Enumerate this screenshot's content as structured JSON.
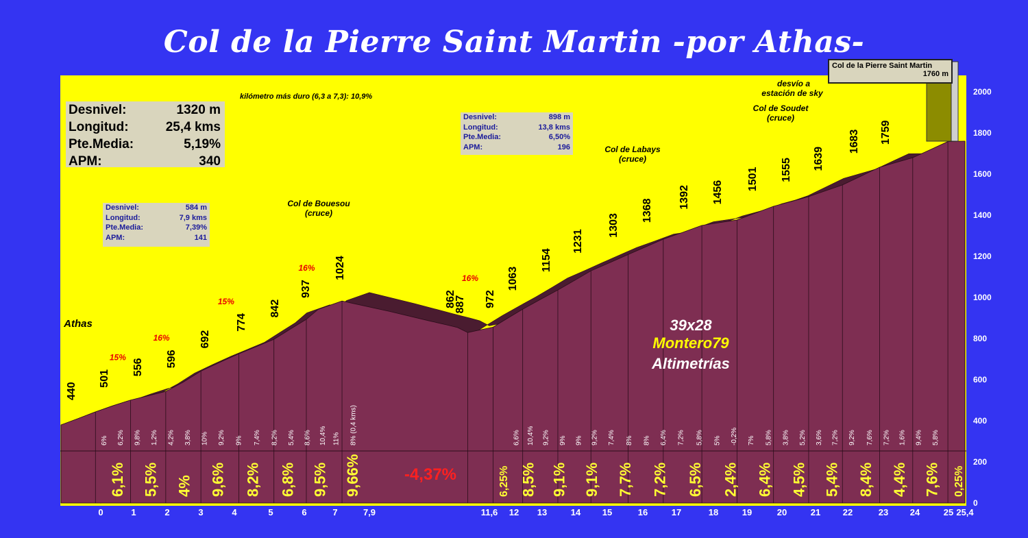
{
  "title": "Col de la Pierre Saint Martin -por Athas-",
  "summary": {
    "rows": [
      {
        "label": "Desnivel:",
        "value": "1320 m"
      },
      {
        "label": "Longitud:",
        "value": "25,4 kms"
      },
      {
        "label": "Pte.Media:",
        "value": "5,19%"
      },
      {
        "label": "APM:",
        "value": "340"
      }
    ]
  },
  "sector1": {
    "rows": [
      {
        "label": "Desnivel:",
        "value": "584 m"
      },
      {
        "label": "Longitud:",
        "value": "7,9 kms"
      },
      {
        "label": "Pte.Media:",
        "value": "7,39%"
      },
      {
        "label": "APM:",
        "value": "141"
      }
    ]
  },
  "sector2": {
    "rows": [
      {
        "label": "Desnivel:",
        "value": "898 m"
      },
      {
        "label": "Longitud:",
        "value": "13,8 kms"
      },
      {
        "label": "Pte.Media:",
        "value": "6,50%"
      },
      {
        "label": "APM:",
        "value": "196"
      }
    ]
  },
  "summit_box": {
    "name": "Col de la Pierre Saint Martin",
    "altitude": "1760 m"
  },
  "hardest_km": "kilómetro más duro (6,3 a 7,3):  10,9%",
  "watermark": {
    "line1": "39x28",
    "line2": "Montero79",
    "line3": "Altimetrías"
  },
  "colors": {
    "background": "#3434f2",
    "plot_bg": "#ffff00",
    "profile": "#7e2e52",
    "profile_top": "#4a1c30",
    "km_pct": "#ffff33",
    "max_pct": "#e80000",
    "descent_pct": "#ff2020"
  },
  "chart_data": {
    "type": "area",
    "xlabel": "",
    "ylabel": "",
    "xlim": [
      0,
      25.4
    ],
    "ylim": [
      0,
      2000
    ],
    "x_ticks": [
      "0",
      "1",
      "2",
      "3",
      "4",
      "5",
      "6",
      "7",
      "7,9",
      "11,6",
      "12",
      "13",
      "14",
      "15",
      "16",
      "17",
      "18",
      "19",
      "20",
      "21",
      "22",
      "23",
      "24",
      "25",
      "25,4"
    ],
    "y_ticks": [
      0,
      200,
      400,
      600,
      800,
      1000,
      1200,
      1400,
      1600,
      1800,
      2000
    ],
    "profile": [
      {
        "km": 0,
        "alt": 440
      },
      {
        "km": 0.5,
        "alt": 470
      },
      {
        "km": 1,
        "alt": 501
      },
      {
        "km": 1.5,
        "alt": 530
      },
      {
        "km": 2,
        "alt": 556
      },
      {
        "km": 2.5,
        "alt": 576
      },
      {
        "km": 3,
        "alt": 596
      },
      {
        "km": 3.5,
        "alt": 640
      },
      {
        "km": 4,
        "alt": 692
      },
      {
        "km": 4.5,
        "alt": 734
      },
      {
        "km": 5,
        "alt": 774
      },
      {
        "km": 5.5,
        "alt": 808
      },
      {
        "km": 6,
        "alt": 842
      },
      {
        "km": 6.5,
        "alt": 890
      },
      {
        "km": 7,
        "alt": 937
      },
      {
        "km": 7.3,
        "alt": 985
      },
      {
        "km": 7.9,
        "alt": 1024
      },
      {
        "km": 9.3,
        "alt": 970
      },
      {
        "km": 10.5,
        "alt": 920
      },
      {
        "km": 11,
        "alt": 900
      },
      {
        "km": 11.3,
        "alt": 887
      },
      {
        "km": 11.6,
        "alt": 862
      },
      {
        "km": 12,
        "alt": 887
      },
      {
        "km": 12.5,
        "alt": 930
      },
      {
        "km": 13,
        "alt": 972
      },
      {
        "km": 13.5,
        "alt": 1018
      },
      {
        "km": 14,
        "alt": 1063
      },
      {
        "km": 14.5,
        "alt": 1108
      },
      {
        "km": 15,
        "alt": 1154
      },
      {
        "km": 15.5,
        "alt": 1192
      },
      {
        "km": 16,
        "alt": 1231
      },
      {
        "km": 16.5,
        "alt": 1267
      },
      {
        "km": 17,
        "alt": 1303
      },
      {
        "km": 17.5,
        "alt": 1335
      },
      {
        "km": 18,
        "alt": 1368
      },
      {
        "km": 18.5,
        "alt": 1380
      },
      {
        "km": 19,
        "alt": 1392
      },
      {
        "km": 19.5,
        "alt": 1424
      },
      {
        "km": 20,
        "alt": 1456
      },
      {
        "km": 20.5,
        "alt": 1478
      },
      {
        "km": 21,
        "alt": 1501
      },
      {
        "km": 21.5,
        "alt": 1528
      },
      {
        "km": 22,
        "alt": 1555
      },
      {
        "km": 22.5,
        "alt": 1597
      },
      {
        "km": 23,
        "alt": 1639
      },
      {
        "km": 23.5,
        "alt": 1661
      },
      {
        "km": 24,
        "alt": 1683
      },
      {
        "km": 24.5,
        "alt": 1721
      },
      {
        "km": 25,
        "alt": 1759
      },
      {
        "km": 25.4,
        "alt": 1760
      }
    ],
    "km_altitude_labels": [
      {
        "km": 0,
        "label": "440"
      },
      {
        "km": 1,
        "label": "501"
      },
      {
        "km": 2,
        "label": "556"
      },
      {
        "km": 3,
        "label": "596"
      },
      {
        "km": 4,
        "label": "692"
      },
      {
        "km": 5,
        "label": "774"
      },
      {
        "km": 6,
        "label": "842"
      },
      {
        "km": 7,
        "label": "937"
      },
      {
        "km": 7.9,
        "label": "1024"
      },
      {
        "km": 11.3,
        "label": "862"
      },
      {
        "km": 11.6,
        "label": "887"
      },
      {
        "km": 12.2,
        "label": "972"
      },
      {
        "km": 13,
        "label": "1063"
      },
      {
        "km": 14,
        "label": "1154"
      },
      {
        "km": 15,
        "label": "1231"
      },
      {
        "km": 16,
        "label": "1303"
      },
      {
        "km": 17,
        "label": "1368"
      },
      {
        "km": 18,
        "label": "1392"
      },
      {
        "km": 19,
        "label": "1456"
      },
      {
        "km": 20,
        "label": "1501"
      },
      {
        "km": 21,
        "label": "1555"
      },
      {
        "km": 22,
        "label": "1639"
      },
      {
        "km": 23,
        "label": "1683"
      },
      {
        "km": 24,
        "label": "1759"
      }
    ],
    "half_km_grades": [
      {
        "km": 0.25,
        "label": "6%"
      },
      {
        "km": 0.75,
        "label": "6,2%"
      },
      {
        "km": 1.25,
        "label": "9,8%"
      },
      {
        "km": 1.75,
        "label": "1,2%"
      },
      {
        "km": 2.25,
        "label": "4,2%"
      },
      {
        "km": 2.75,
        "label": "3,8%"
      },
      {
        "km": 3.25,
        "label": "10%"
      },
      {
        "km": 3.75,
        "label": "9,2%"
      },
      {
        "km": 4.25,
        "label": "9%"
      },
      {
        "km": 4.75,
        "label": "7,4%"
      },
      {
        "km": 5.25,
        "label": "8,2%"
      },
      {
        "km": 5.75,
        "label": "5,4%"
      },
      {
        "km": 6.25,
        "label": "8,6%"
      },
      {
        "km": 6.75,
        "label": "10,4%"
      },
      {
        "km": 7.15,
        "label": "11%"
      },
      {
        "km": 7.6,
        "label": "8% (0,4 kms)"
      },
      {
        "km": 12.25,
        "label": "6,6%"
      },
      {
        "km": 12.75,
        "label": "10,4%"
      },
      {
        "km": 13.25,
        "label": "9,2%"
      },
      {
        "km": 13.75,
        "label": "9%"
      },
      {
        "km": 14.25,
        "label": "9%"
      },
      {
        "km": 14.75,
        "label": "9,2%"
      },
      {
        "km": 15.25,
        "label": "7,4%"
      },
      {
        "km": 15.75,
        "label": "8%"
      },
      {
        "km": 16.25,
        "label": "8%"
      },
      {
        "km": 16.75,
        "label": "6,4%"
      },
      {
        "km": 17.25,
        "label": "7,2%"
      },
      {
        "km": 17.75,
        "label": "5,8%"
      },
      {
        "km": 18.25,
        "label": "5%"
      },
      {
        "km": 18.75,
        "label": "-0,2%"
      },
      {
        "km": 19.25,
        "label": "7%"
      },
      {
        "km": 19.75,
        "label": "5,8%"
      },
      {
        "km": 20.25,
        "label": "3,8%"
      },
      {
        "km": 20.75,
        "label": "5,2%"
      },
      {
        "km": 21.25,
        "label": "3,6%"
      },
      {
        "km": 21.75,
        "label": "7,2%"
      },
      {
        "km": 22.25,
        "label": "9,2%"
      },
      {
        "km": 22.75,
        "label": "7,6%"
      },
      {
        "km": 23.25,
        "label": "7,2%"
      },
      {
        "km": 23.75,
        "label": "1,6%"
      },
      {
        "km": 24.25,
        "label": "9,4%"
      },
      {
        "km": 24.75,
        "label": "5,8%"
      }
    ],
    "km_grades": [
      {
        "km": 0.5,
        "label": "6,1%"
      },
      {
        "km": 1.5,
        "label": "5,5%"
      },
      {
        "km": 2.5,
        "label": "4%"
      },
      {
        "km": 3.5,
        "label": "9,6%"
      },
      {
        "km": 4.5,
        "label": "8,2%"
      },
      {
        "km": 5.5,
        "label": "6,8%"
      },
      {
        "km": 6.5,
        "label": "9,5%"
      },
      {
        "km": 7.45,
        "label": "9,66%"
      },
      {
        "km": 11.8,
        "label": "6,25%"
      },
      {
        "km": 12.5,
        "label": "8,5%"
      },
      {
        "km": 13.5,
        "label": "9,1%"
      },
      {
        "km": 14.5,
        "label": "9,1%"
      },
      {
        "km": 15.5,
        "label": "7,7%"
      },
      {
        "km": 16.5,
        "label": "7,2%"
      },
      {
        "km": 17.5,
        "label": "6,5%"
      },
      {
        "km": 18.5,
        "label": "2,4%"
      },
      {
        "km": 19.5,
        "label": "6,4%"
      },
      {
        "km": 20.5,
        "label": "4,5%"
      },
      {
        "km": 21.5,
        "label": "5,4%"
      },
      {
        "km": 22.5,
        "label": "8,4%"
      },
      {
        "km": 23.5,
        "label": "4,4%"
      },
      {
        "km": 24.5,
        "label": "7,6%"
      },
      {
        "km": 25.2,
        "label": "0,25%"
      }
    ],
    "descent_grade": {
      "km": 9.75,
      "label": "-4,37%"
    },
    "max_grades": [
      {
        "km": 1.1,
        "alt": 501,
        "label": "15%"
      },
      {
        "km": 2.4,
        "alt": 596,
        "label": "16%"
      },
      {
        "km": 4.3,
        "alt": 774,
        "label": "15%"
      },
      {
        "km": 6.7,
        "alt": 937,
        "label": "16%"
      },
      {
        "km": 11.6,
        "alt": 887,
        "label": "16%"
      }
    ],
    "annotations": [
      {
        "km": 0,
        "alt": 440,
        "text": "Athas"
      },
      {
        "km": 7.3,
        "alt": 1024,
        "text": "Col de Bouesou",
        "sub": "(cruce)"
      },
      {
        "km": 17.5,
        "alt": 1368,
        "text": "Col de Labays",
        "sub": "(cruce)"
      },
      {
        "km": 21.2,
        "alt": 1555,
        "text": "Col de Soudet",
        "sub": "(cruce)"
      },
      {
        "km": 22.3,
        "alt": 1639,
        "text": "desvío a",
        "sub": "estación de sky"
      }
    ]
  }
}
